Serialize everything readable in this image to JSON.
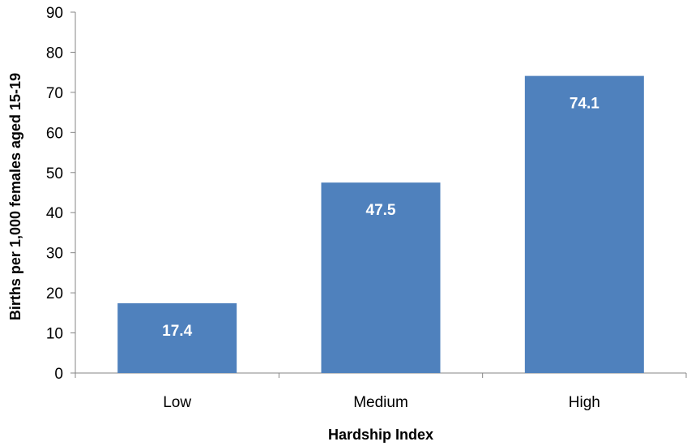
{
  "chart_data": {
    "type": "bar",
    "categories": [
      "Low",
      "Medium",
      "High"
    ],
    "values": [
      17.4,
      47.5,
      74.1
    ],
    "data_labels": [
      "17.4",
      "47.5",
      "74.1"
    ],
    "title": "",
    "xlabel": "Hardship Index",
    "ylabel": "Births per 1,000 females aged 15-19",
    "ylim": [
      0,
      90
    ],
    "yticks": [
      0,
      10,
      20,
      30,
      40,
      50,
      60,
      70,
      80,
      90
    ],
    "grid": false,
    "legend": "none",
    "colors": {
      "bar": "#4F81BD",
      "data_label": "#FFFFFF",
      "axis": "#868686"
    }
  }
}
